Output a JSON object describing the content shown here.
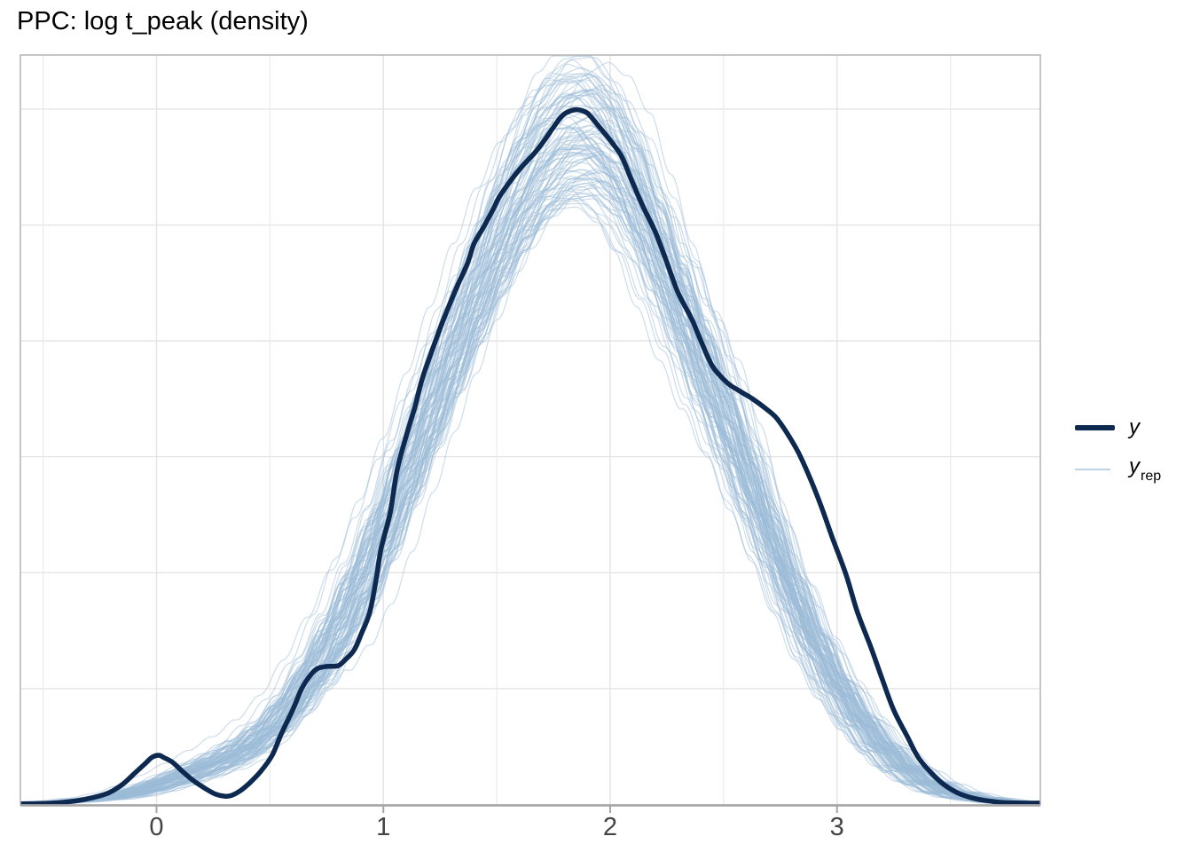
{
  "title": "PPC: log t_peak (density)",
  "legend": {
    "position": "right",
    "items": [
      {
        "label": "y",
        "sublabel": "",
        "swatch": "thick-line"
      },
      {
        "label": "y",
        "sublabel": "rep",
        "swatch": "thin-line"
      }
    ]
  },
  "colors": {
    "background": "#ffffff",
    "panel_background": "#ffffff",
    "panel_border": "#b3b3b3",
    "axis_line": "#a6a6a6",
    "tick_mark": "#a6a6a6",
    "tick_label": "#444444",
    "grid_major": "#e4e4e4",
    "grid_minor": "#ebebeb",
    "observed_line": "#0d2950",
    "replicate_line": "#9bbcd7"
  },
  "chart_data": {
    "type": "line",
    "subtype": "ppc_density_overlay",
    "title": "PPC: log t_peak (density)",
    "xlabel": "",
    "ylabel": "",
    "grid": true,
    "legend_position": "right",
    "x_range": [
      -0.6,
      3.9
    ],
    "x_ticks": [
      {
        "value": 0,
        "label": "0"
      },
      {
        "value": 1,
        "label": "1"
      },
      {
        "value": 2,
        "label": "2"
      },
      {
        "value": 3,
        "label": "3"
      }
    ],
    "x_minor_gridlines": [
      -0.5,
      0.5,
      1.5,
      2.5,
      3.5
    ],
    "y_axis": "density (unlabeled, no ticks)",
    "y_range_relative": [
      0,
      1.08
    ],
    "y_gridlines_relative": [
      0.167,
      0.334,
      0.501,
      0.668,
      0.835,
      1.002
    ],
    "series": [
      {
        "name": "y",
        "role": "observed",
        "color": "#0d2950",
        "line_width": 5.5,
        "points": [
          [
            -0.6,
            0.001
          ],
          [
            -0.46,
            0.002
          ],
          [
            -0.36,
            0.005
          ],
          [
            -0.28,
            0.01
          ],
          [
            -0.21,
            0.017
          ],
          [
            -0.15,
            0.029
          ],
          [
            -0.1,
            0.044
          ],
          [
            -0.05,
            0.059
          ],
          [
            -0.02,
            0.068
          ],
          [
            0.01,
            0.071
          ],
          [
            0.03,
            0.068
          ],
          [
            0.07,
            0.061
          ],
          [
            0.11,
            0.049
          ],
          [
            0.16,
            0.035
          ],
          [
            0.22,
            0.022
          ],
          [
            0.26,
            0.015
          ],
          [
            0.3,
            0.012
          ],
          [
            0.33,
            0.013
          ],
          [
            0.37,
            0.02
          ],
          [
            0.41,
            0.031
          ],
          [
            0.46,
            0.048
          ],
          [
            0.51,
            0.071
          ],
          [
            0.55,
            0.102
          ],
          [
            0.6,
            0.136
          ],
          [
            0.64,
            0.167
          ],
          [
            0.68,
            0.187
          ],
          [
            0.71,
            0.196
          ],
          [
            0.75,
            0.199
          ],
          [
            0.8,
            0.2
          ],
          [
            0.83,
            0.208
          ],
          [
            0.87,
            0.222
          ],
          [
            0.9,
            0.244
          ],
          [
            0.94,
            0.277
          ],
          [
            0.97,
            0.328
          ],
          [
            0.99,
            0.369
          ],
          [
            1.03,
            0.42
          ],
          [
            1.06,
            0.481
          ],
          [
            1.1,
            0.53
          ],
          [
            1.14,
            0.574
          ],
          [
            1.17,
            0.612
          ],
          [
            1.21,
            0.65
          ],
          [
            1.25,
            0.686
          ],
          [
            1.29,
            0.719
          ],
          [
            1.33,
            0.75
          ],
          [
            1.37,
            0.779
          ],
          [
            1.4,
            0.808
          ],
          [
            1.44,
            0.831
          ],
          [
            1.48,
            0.855
          ],
          [
            1.51,
            0.875
          ],
          [
            1.55,
            0.894
          ],
          [
            1.59,
            0.911
          ],
          [
            1.63,
            0.926
          ],
          [
            1.67,
            0.94
          ],
          [
            1.71,
            0.957
          ],
          [
            1.75,
            0.976
          ],
          [
            1.79,
            0.993
          ],
          [
            1.83,
            1.0
          ],
          [
            1.86,
            1.001
          ],
          [
            1.9,
            0.996
          ],
          [
            1.94,
            0.981
          ],
          [
            2.0,
            0.957
          ],
          [
            2.05,
            0.934
          ],
          [
            2.09,
            0.903
          ],
          [
            2.14,
            0.865
          ],
          [
            2.2,
            0.824
          ],
          [
            2.25,
            0.781
          ],
          [
            2.3,
            0.737
          ],
          [
            2.36,
            0.699
          ],
          [
            2.41,
            0.66
          ],
          [
            2.45,
            0.632
          ],
          [
            2.49,
            0.616
          ],
          [
            2.53,
            0.604
          ],
          [
            2.58,
            0.594
          ],
          [
            2.63,
            0.584
          ],
          [
            2.68,
            0.572
          ],
          [
            2.73,
            0.558
          ],
          [
            2.78,
            0.535
          ],
          [
            2.83,
            0.507
          ],
          [
            2.88,
            0.471
          ],
          [
            2.93,
            0.43
          ],
          [
            2.98,
            0.384
          ],
          [
            3.04,
            0.331
          ],
          [
            3.09,
            0.277
          ],
          [
            3.15,
            0.226
          ],
          [
            3.2,
            0.18
          ],
          [
            3.25,
            0.136
          ],
          [
            3.31,
            0.098
          ],
          [
            3.36,
            0.067
          ],
          [
            3.42,
            0.044
          ],
          [
            3.47,
            0.029
          ],
          [
            3.53,
            0.017
          ],
          [
            3.59,
            0.01
          ],
          [
            3.65,
            0.006
          ],
          [
            3.73,
            0.003
          ],
          [
            3.83,
            0.002
          ],
          [
            3.91,
            0.002
          ]
        ]
      },
      {
        "name": "y_rep",
        "role": "replicated",
        "color": "#9bbcd7",
        "opacity": 0.5,
        "line_width": 1.2,
        "n_curves": 100,
        "seed": 42,
        "base_curve": [
          [
            -0.6,
            0.001
          ],
          [
            -0.4,
            0.003
          ],
          [
            -0.2,
            0.007
          ],
          [
            -0.1,
            0.011
          ],
          [
            0.0,
            0.018
          ],
          [
            0.1,
            0.027
          ],
          [
            0.2,
            0.038
          ],
          [
            0.3,
            0.052
          ],
          [
            0.4,
            0.07
          ],
          [
            0.5,
            0.094
          ],
          [
            0.6,
            0.126
          ],
          [
            0.7,
            0.168
          ],
          [
            0.8,
            0.222
          ],
          [
            0.9,
            0.29
          ],
          [
            1.0,
            0.365
          ],
          [
            1.1,
            0.445
          ],
          [
            1.2,
            0.525
          ],
          [
            1.3,
            0.605
          ],
          [
            1.4,
            0.683
          ],
          [
            1.5,
            0.755
          ],
          [
            1.6,
            0.818
          ],
          [
            1.7,
            0.868
          ],
          [
            1.8,
            0.896
          ],
          [
            1.9,
            0.9
          ],
          [
            2.0,
            0.875
          ],
          [
            2.1,
            0.825
          ],
          [
            2.2,
            0.75
          ],
          [
            2.3,
            0.67
          ],
          [
            2.4,
            0.585
          ],
          [
            2.5,
            0.505
          ],
          [
            2.6,
            0.425
          ],
          [
            2.7,
            0.35
          ],
          [
            2.8,
            0.278
          ],
          [
            2.9,
            0.213
          ],
          [
            3.0,
            0.158
          ],
          [
            3.1,
            0.112
          ],
          [
            3.2,
            0.076
          ],
          [
            3.3,
            0.048
          ],
          [
            3.4,
            0.029
          ],
          [
            3.5,
            0.016
          ],
          [
            3.6,
            0.009
          ],
          [
            3.7,
            0.005
          ],
          [
            3.8,
            0.002
          ],
          [
            3.9,
            0.001
          ]
        ],
        "variation": {
          "center_jitter": 0.12,
          "width_jitter": 0.07,
          "amplitude_range": [
            0.96,
            1.18
          ],
          "shoulder_bump": {
            "center": 2.56,
            "sd": 0.15,
            "max": 0.1
          },
          "left_bump": {
            "center": 0.72,
            "sd": 0.13,
            "max": 0.05
          },
          "tail_bump": {
            "center": 0.18,
            "sd": 0.25,
            "max": 0.02
          },
          "wiggle": {
            "amp1": 0.022,
            "amp2": 0.014
          }
        }
      }
    ]
  },
  "axis": {
    "tick_font_size": 29,
    "title_font_size": 29
  }
}
